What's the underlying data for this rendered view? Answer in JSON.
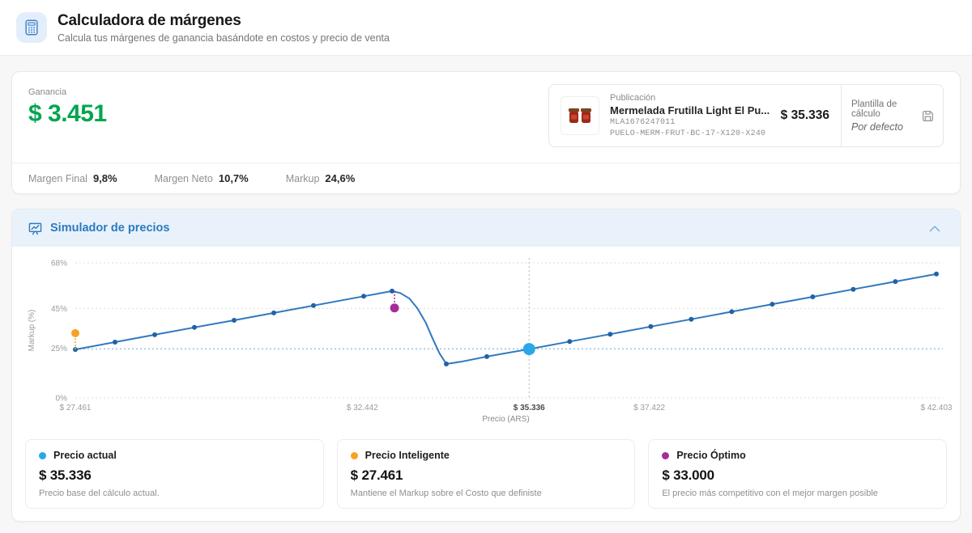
{
  "header": {
    "title": "Calculadora de márgenes",
    "subtitle": "Calcula tus márgenes de ganancia basándote en costos y precio de venta",
    "icon": "calculator-icon"
  },
  "summary": {
    "profit_label": "Ganancia",
    "profit_value": "$ 3.451",
    "publication": {
      "label": "Publicación",
      "title": "Mermelada Frutilla Light El Pu...",
      "mla_id": "MLA1676247011",
      "sku": "PUELO-MERM-FRUT-BC-17-X120-X240",
      "price": "$ 35.336",
      "template_label": "Plantilla de cálculo",
      "template_value": "Por defecto"
    },
    "stats": [
      {
        "label": "Margen Final",
        "value": "9,8%"
      },
      {
        "label": "Margen Neto",
        "value": "10,7%"
      },
      {
        "label": "Markup",
        "value": "24,6%"
      }
    ]
  },
  "simulator": {
    "title": "Simulador de precios"
  },
  "chart_data": {
    "type": "line",
    "title": "Simulador de precios",
    "xlabel": "Precio (ARS)",
    "ylabel": "Markup (%)",
    "x_range": [
      27461,
      42403
    ],
    "y_range": [
      0,
      68
    ],
    "grid": true,
    "line_color": "#3178be",
    "dot_color": "#1f63a8",
    "y_ticks": [
      {
        "value": 0,
        "label": "0%"
      },
      {
        "value": 25,
        "label": "25%"
      },
      {
        "value": 45,
        "label": "45%"
      },
      {
        "value": 68,
        "label": "68%"
      }
    ],
    "x_ticks": [
      {
        "value": 27461,
        "label": "$ 27.461"
      },
      {
        "value": 32442,
        "label": "$ 32.442"
      },
      {
        "value": 35336,
        "label": "$ 35.336",
        "emphasis": true
      },
      {
        "value": 37422,
        "label": "$ 37.422"
      },
      {
        "value": 42403,
        "label": "$ 42.403"
      }
    ],
    "guides": {
      "h_markup": 24.6,
      "v_price": 35336
    },
    "series": [
      {
        "name": "Markup por precio",
        "points": [
          [
            27461,
            24.4,
            1
          ],
          [
            28150,
            28.1,
            1
          ],
          [
            28839,
            31.8,
            1
          ],
          [
            29527,
            35.5,
            1
          ],
          [
            30216,
            39.1,
            1
          ],
          [
            30905,
            42.8,
            1
          ],
          [
            31594,
            46.5,
            1
          ],
          [
            32465,
            51.2,
            1
          ],
          [
            32957,
            53.8,
            1
          ],
          [
            33100,
            52.8,
            0
          ],
          [
            33260,
            50.0,
            0
          ],
          [
            33400,
            45.0,
            0
          ],
          [
            33540,
            38.0,
            0
          ],
          [
            33660,
            30.0,
            0
          ],
          [
            33780,
            22.5,
            0
          ],
          [
            33899,
            17.1,
            1
          ],
          [
            34150,
            18.2,
            0
          ],
          [
            34602,
            20.8,
            1
          ],
          [
            35336,
            24.6,
            1
          ],
          [
            36040,
            28.4,
            1
          ],
          [
            36743,
            32.1,
            1
          ],
          [
            37446,
            35.9,
            1
          ],
          [
            38149,
            39.6,
            1
          ],
          [
            38852,
            43.4,
            1
          ],
          [
            39555,
            47.2,
            1
          ],
          [
            40258,
            50.9,
            1
          ],
          [
            40961,
            54.7,
            1
          ],
          [
            41692,
            58.6,
            1
          ],
          [
            42403,
            62.4,
            1
          ]
        ]
      }
    ],
    "markers": [
      {
        "name": "precio-actual",
        "price": 35336,
        "markup": 24.6,
        "color": "#29a7e6",
        "size": 7.5
      },
      {
        "name": "precio-inteligente",
        "price": 27461,
        "markup": 32.6,
        "color": "#f6a325",
        "size": 5,
        "connect_to_markup": 24.4
      },
      {
        "name": "precio-optimo",
        "price": 33000,
        "markup": 45.3,
        "color": "#a62c9b",
        "size": 5.5,
        "connect_to_markup": 53.8
      }
    ]
  },
  "price_cards": [
    {
      "dot_color": "#29a7e6",
      "title": "Precio actual",
      "value": "$ 35.336",
      "description": "Precio base del cálculo actual."
    },
    {
      "dot_color": "#f6a325",
      "title": "Precio Inteligente",
      "value": "$ 27.461",
      "description": "Mantiene el Markup sobre el Costo que definiste"
    },
    {
      "dot_color": "#a62c9b",
      "title": "Precio Óptimo",
      "value": "$ 33.000",
      "description": "El precio más competitivo con el mejor margen posible"
    }
  ]
}
